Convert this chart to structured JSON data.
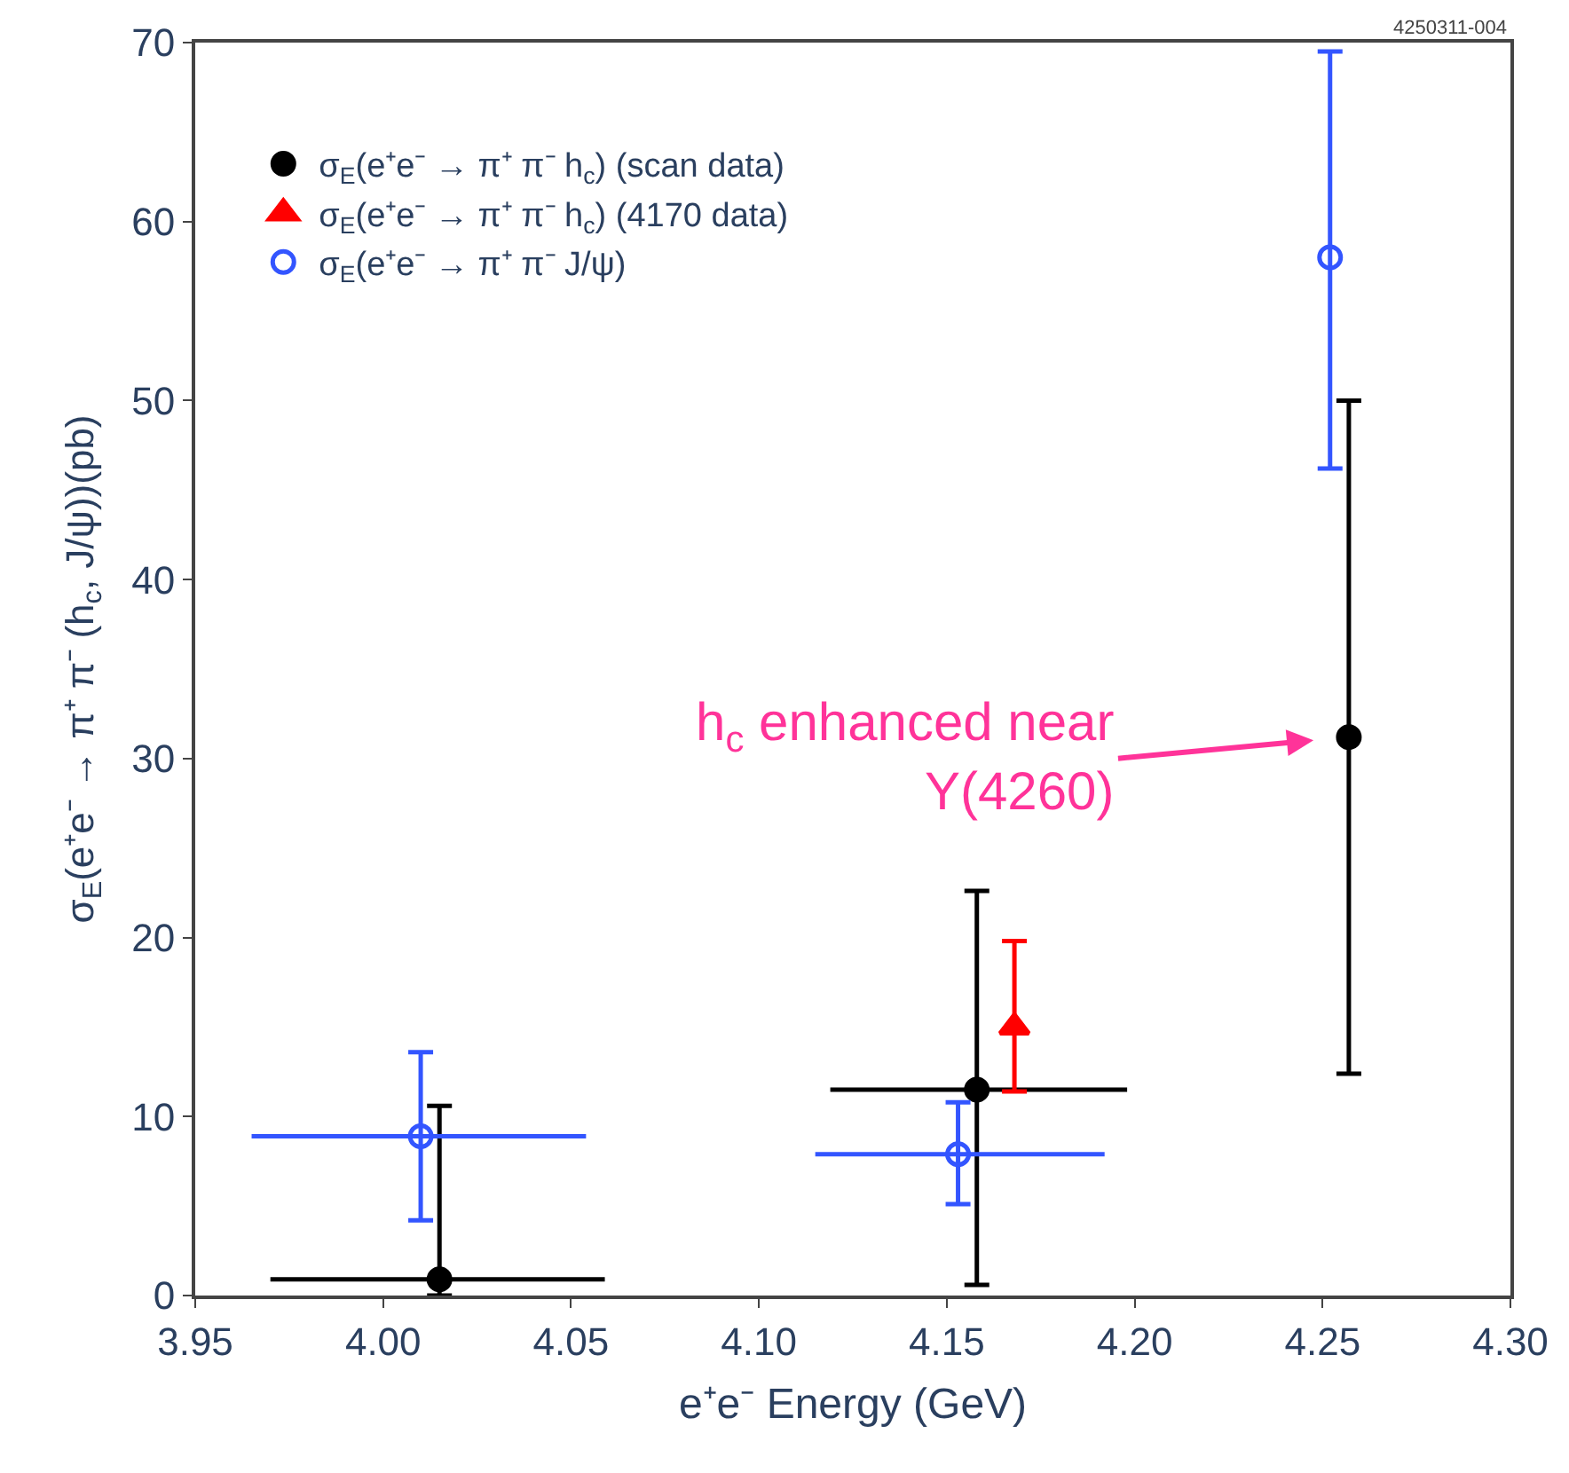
{
  "chart_data": {
    "type": "scatter",
    "xlabel": "e⁺e⁻ Energy (GeV)",
    "ylabel": "σ$_{E}$(e⁺e⁻ → π⁺ π⁻ (h$_{c}$, J/ψ))(pb)",
    "xlim": [
      3.95,
      4.3
    ],
    "xticks": [
      3.95,
      {
        "value": 4.0,
        "label": "4.00"
      },
      4.05,
      {
        "value": 4.1,
        "label": "4.10"
      },
      4.15,
      {
        "value": 4.2,
        "label": "4.20"
      },
      4.25,
      {
        "value": 4.3,
        "label": "4.30"
      }
    ],
    "ylim": [
      0,
      70
    ],
    "yticks": [
      0,
      10,
      20,
      30,
      40,
      50,
      60,
      70
    ],
    "legend": "top left",
    "series": [
      {
        "name": "σ$_{E}$(e⁺e⁻ → π⁺ π⁻ h$_{c}$) (scan data)",
        "color": "#000000",
        "marker": "circle",
        "x": [
          4.015,
          4.158,
          4.257
        ],
        "values": [
          0.9,
          11.5,
          31.2
        ],
        "errors": [
          [
            0,
            10.6
          ],
          [
            0.6,
            22.6
          ],
          [
            12.4,
            50.0
          ]
        ],
        "xerrors": [
          [
            3.97,
            4.059
          ],
          [
            4.119,
            4.198
          ],
          null
        ]
      },
      {
        "name": "σ$_{E}$(e⁺e⁻ → π⁺ π⁻ h$_{c}$) (4170 data)",
        "color": "#ff0000",
        "marker": "triangle",
        "x": [
          4.168
        ],
        "values": [
          15.0
        ],
        "errors": [
          [
            11.4,
            19.8
          ]
        ],
        "xerrors": [
          null
        ]
      },
      {
        "name": "σ$_{E}$(e⁺e⁻ → π⁺ π⁻ J/ψ)",
        "color": "#3355ff",
        "marker": "open circle",
        "x": [
          4.01,
          4.153,
          4.252
        ],
        "values": [
          8.9,
          7.9,
          58.0
        ],
        "errors": [
          [
            4.2,
            13.6
          ],
          [
            5.1,
            10.8
          ],
          [
            46.2,
            69.5
          ]
        ],
        "xerrors": [
          [
            3.965,
            4.054
          ],
          [
            4.115,
            4.192
          ],
          null
        ]
      }
    ],
    "annotations": [
      {
        "text": "h$_{c}$ enhanced near\nY(4260)",
        "x": 4.257,
        "y": 31.2
      },
      "4250311-004"
    ]
  }
}
